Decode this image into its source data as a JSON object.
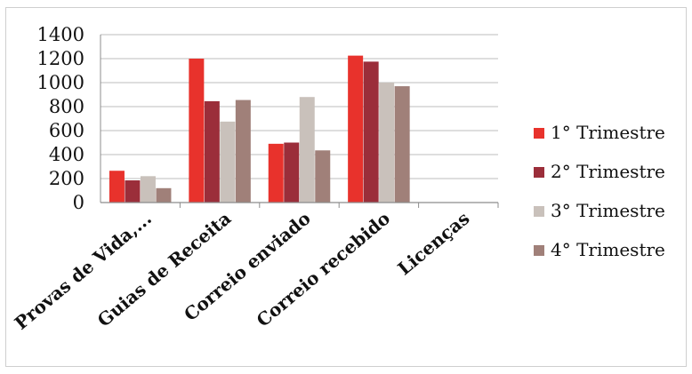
{
  "chart_data": {
    "type": "bar",
    "title": "",
    "xlabel": "",
    "ylabel": "",
    "ylim": [
      0,
      1400
    ],
    "yticks": [
      0,
      200,
      400,
      600,
      800,
      1000,
      1200,
      1400
    ],
    "grid": true,
    "legend_position": "right",
    "categories": [
      "Provas de Vida,...",
      "Guias de Receita",
      "Correio enviado",
      "Correio recebido",
      "Licenças"
    ],
    "series": [
      {
        "name": "1° Trimestre",
        "color": "#e8322c",
        "values": [
          265,
          1200,
          490,
          1225,
          0
        ]
      },
      {
        "name": "2° Trimestre",
        "color": "#9b2e3a",
        "values": [
          185,
          845,
          500,
          1175,
          0
        ]
      },
      {
        "name": "3° Trimestre",
        "color": "#c9c1bb",
        "values": [
          220,
          675,
          880,
          1000,
          0
        ]
      },
      {
        "name": "4° Trimestre",
        "color": "#a08079",
        "values": [
          120,
          855,
          435,
          970,
          0
        ]
      }
    ]
  }
}
